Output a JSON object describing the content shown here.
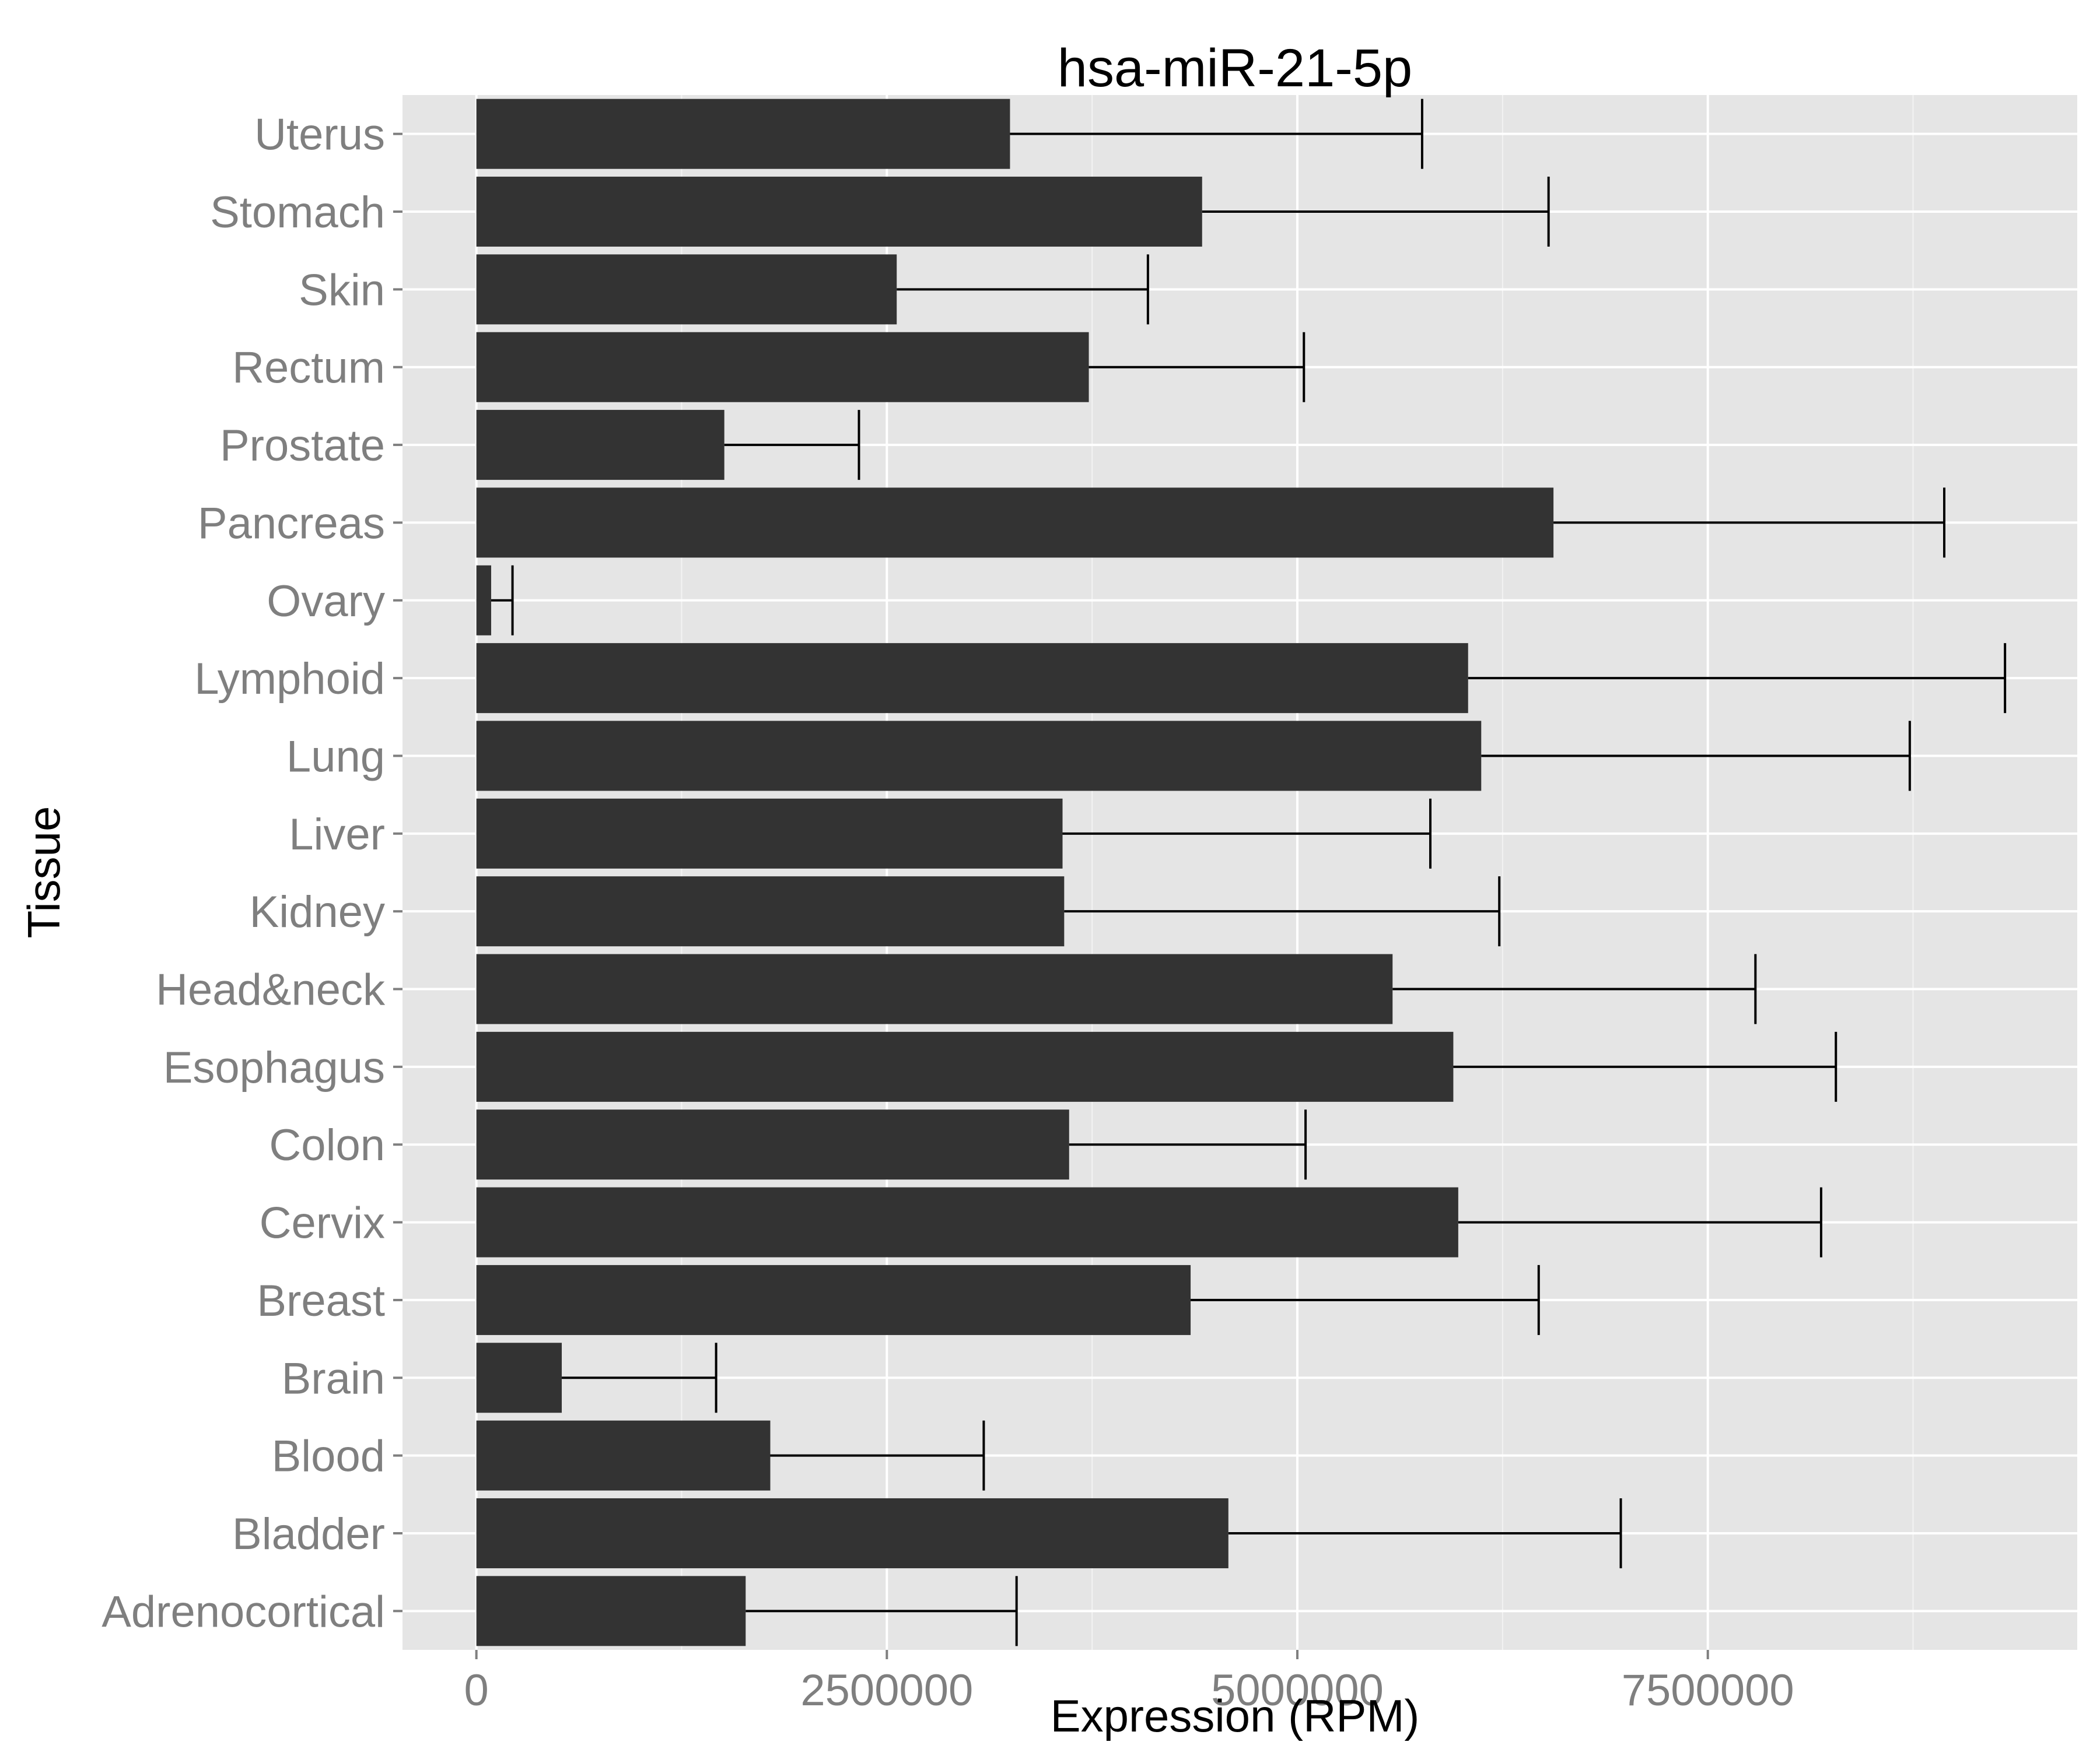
{
  "chart_data": {
    "type": "bar",
    "orientation": "horizontal",
    "title": "hsa-miR-21-5p",
    "xlabel": "Expression (RPM)",
    "ylabel": "Tissue",
    "xlim": [
      -450000,
      9750000
    ],
    "x_ticks": [
      0,
      2500000,
      5000000,
      7500000
    ],
    "x_tick_labels": [
      "0",
      "2500000",
      "5000000",
      "7500000"
    ],
    "grid": true,
    "categories": [
      "Adrenocortical",
      "Bladder",
      "Blood",
      "Brain",
      "Breast",
      "Cervix",
      "Colon",
      "Esophagus",
      "Head&neck",
      "Kidney",
      "Liver",
      "Lung",
      "Lymphoid",
      "Ovary",
      "Pancreas",
      "Prostate",
      "Rectum",
      "Skin",
      "Stomach",
      "Uterus"
    ],
    "values": [
      1640000,
      4580000,
      1790000,
      520000,
      4350000,
      5980000,
      3610000,
      5950000,
      5580000,
      3580000,
      3570000,
      6120000,
      6040000,
      90000,
      6560000,
      1510000,
      3730000,
      2560000,
      4420000,
      3250000
    ],
    "error_upper": [
      3290000,
      6970000,
      3090000,
      1460000,
      6470000,
      8190000,
      5050000,
      8280000,
      7790000,
      6230000,
      5810000,
      8730000,
      9310000,
      220000,
      8940000,
      2330000,
      5040000,
      4090000,
      6530000,
      5760000
    ],
    "bar_color": "#333333",
    "panel_color": "#e5e5e5",
    "grid_color": "#ffffff"
  }
}
